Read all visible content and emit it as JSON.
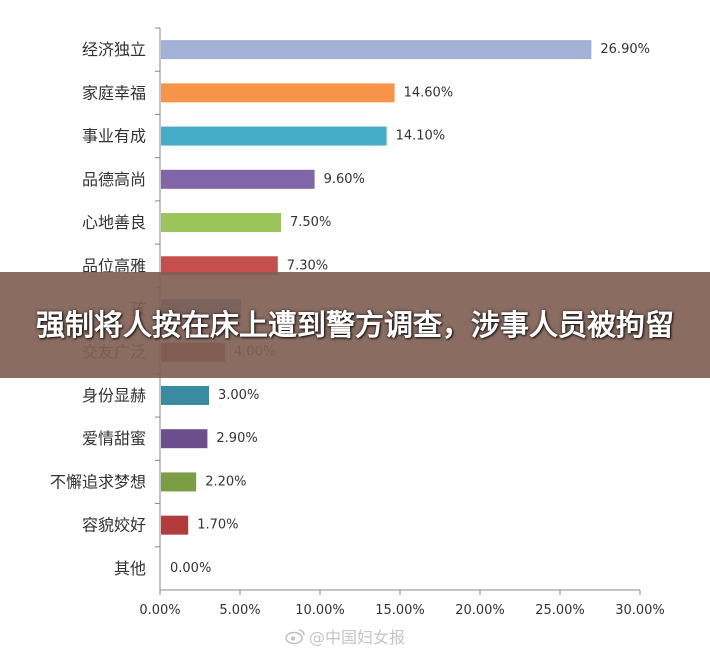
{
  "chart_data": {
    "type": "bar",
    "orientation": "horizontal",
    "categories": [
      "经济独立",
      "家庭幸福",
      "事业有成",
      "品德高尚",
      "心地善良",
      "品位高雅",
      "孩",
      "交友广泛",
      "身份显赫",
      "爱情甜蜜",
      "不懈追求梦想",
      "容貌姣好",
      "其他"
    ],
    "values": [
      26.9,
      14.6,
      14.1,
      9.6,
      7.5,
      7.3,
      5.0,
      4.0,
      3.0,
      2.9,
      2.2,
      1.7,
      0.0
    ],
    "data_labels": [
      "26.90%",
      "14.60%",
      "14.10%",
      "9.60%",
      "7.50%",
      "7.30%",
      "",
      "4.00%",
      "3.00%",
      "2.90%",
      "2.20%",
      "1.70%",
      "0.00%"
    ],
    "colors": [
      "#a3b1d6",
      "#f6944a",
      "#45adc8",
      "#8066a8",
      "#9bc55a",
      "#c44f4d",
      "#4d7ebf",
      "#7a4526",
      "#3a8aa1",
      "#6c4e8c",
      "#7b9e45",
      "#b03c3c",
      "#999999"
    ],
    "x_ticks": [
      "0.00%",
      "5.00%",
      "10.00%",
      "15.00%",
      "20.00%",
      "25.00%",
      "30.00%"
    ],
    "xlim": [
      0,
      30
    ],
    "grid": false,
    "legend": "none"
  },
  "banner": {
    "text": "强制将人按在床上遭到警方调查，涉事人员被拘留"
  },
  "watermark": {
    "text": "@中国妇女报",
    "icon": "weibo-icon"
  }
}
